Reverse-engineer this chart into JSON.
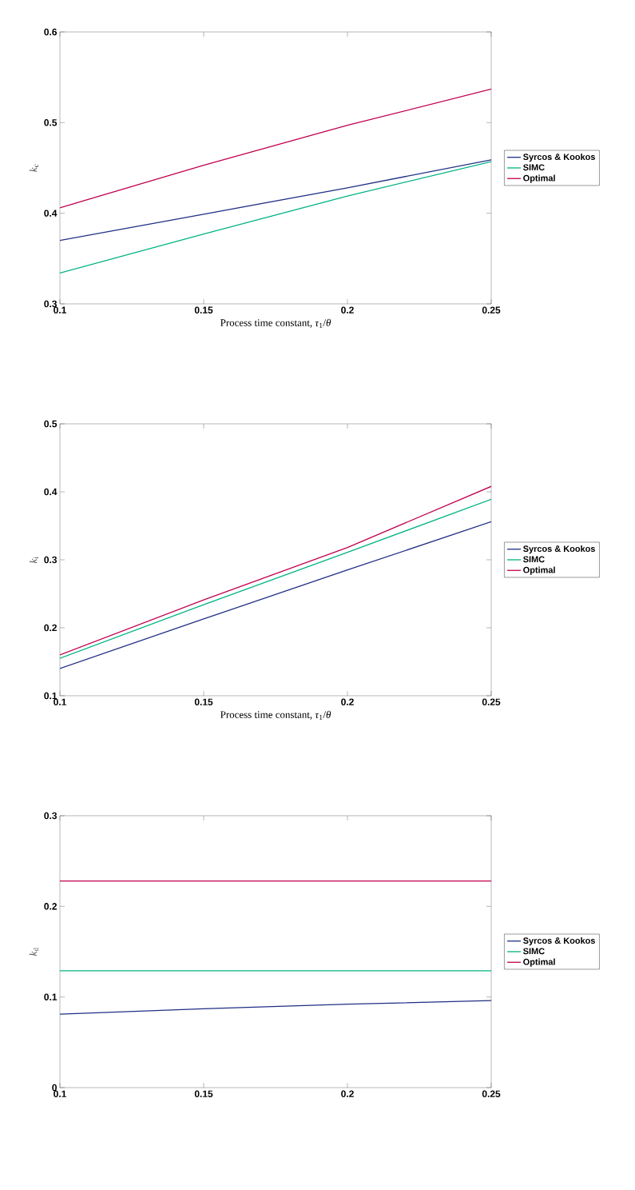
{
  "chart_data": [
    {
      "type": "line",
      "xlabel": "Process time constant, *τ*$_{1}$/*θ*",
      "ylabel": "*k*$_{c}$",
      "x": [
        0.1,
        0.15,
        0.2,
        0.25
      ],
      "xlim": [
        0.1,
        0.25
      ],
      "xticks": [
        0.1,
        0.15,
        0.2,
        0.25
      ],
      "ylim": [
        0.3,
        0.6
      ],
      "yticks": [
        0.3,
        0.4,
        0.5,
        0.6
      ],
      "legend": "right",
      "series": [
        {
          "name": "Syrcos & Kookos",
          "color": "#1f2f85",
          "values": [
            0.37,
            0.399,
            0.428,
            0.459
          ]
        },
        {
          "name": "SIMC",
          "color": "#00b383",
          "values": [
            0.334,
            0.377,
            0.419,
            0.457
          ]
        },
        {
          "name": "Optimal",
          "color": "#c0004f",
          "values": [
            0.406,
            0.453,
            0.497,
            0.537
          ]
        }
      ]
    },
    {
      "type": "line",
      "xlabel": "Process time constant, *τ*$_{1}$/*θ*",
      "ylabel": "*k*$_{i}$",
      "x": [
        0.1,
        0.15,
        0.2,
        0.25
      ],
      "xlim": [
        0.1,
        0.25
      ],
      "xticks": [
        0.1,
        0.15,
        0.2,
        0.25
      ],
      "ylim": [
        0.1,
        0.5
      ],
      "yticks": [
        0.1,
        0.2,
        0.3,
        0.4,
        0.5
      ],
      "legend": "right",
      "series": [
        {
          "name": "Syrcos & Kookos",
          "color": "#1f2f85",
          "values": [
            0.14,
            0.213,
            0.285,
            0.356
          ]
        },
        {
          "name": "SIMC",
          "color": "#00b383",
          "values": [
            0.155,
            0.234,
            0.311,
            0.389
          ]
        },
        {
          "name": "Optimal",
          "color": "#c0004f",
          "values": [
            0.16,
            0.241,
            0.318,
            0.408
          ]
        }
      ]
    },
    {
      "type": "line",
      "ylabel": "*k*$_{d}$",
      "x": [
        0.1,
        0.15,
        0.2,
        0.25
      ],
      "xlim": [
        0.1,
        0.25
      ],
      "xticks": [
        0.1,
        0.15,
        0.2,
        0.25
      ],
      "ylim": [
        0,
        0.3
      ],
      "yticks": [
        0,
        0.1,
        0.2,
        0.3
      ],
      "legend": "right",
      "series": [
        {
          "name": "Syrcos & Kookos",
          "color": "#1f2f85",
          "values": [
            0.081,
            0.087,
            0.092,
            0.096
          ]
        },
        {
          "name": "SIMC",
          "color": "#00b383",
          "values": [
            0.129,
            0.129,
            0.129,
            0.129
          ]
        },
        {
          "name": "Optimal",
          "color": "#c0004f",
          "values": [
            0.228,
            0.228,
            0.228,
            0.228
          ]
        }
      ]
    }
  ]
}
